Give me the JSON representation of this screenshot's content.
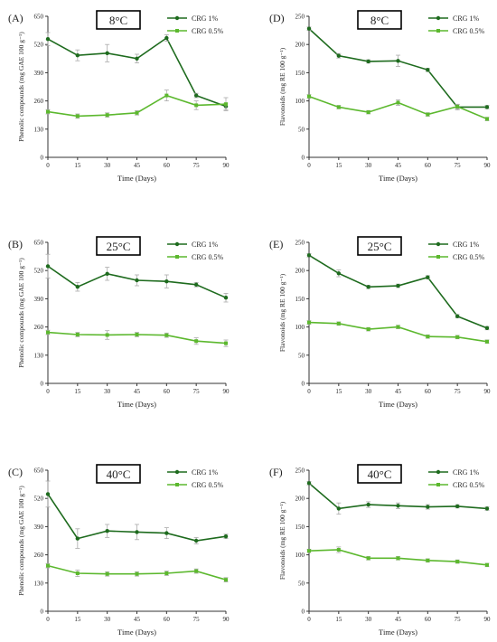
{
  "figure": {
    "colors": {
      "dark": "#1e6b1e",
      "light": "#5cb82e",
      "axis": "#333333"
    },
    "x_ticks": [
      0,
      15,
      30,
      45,
      60,
      75,
      90
    ]
  },
  "chart_data": [
    {
      "panel_label": "(A)",
      "temp_label": "8°C",
      "type": "line",
      "xlabel": "Time (Days)",
      "ylabel": "Phenolic compounds (mg GAE 100 g⁻¹)",
      "xlim": [
        0,
        90
      ],
      "ylim": [
        0,
        650
      ],
      "yticks": [
        0,
        130,
        260,
        390,
        520,
        650
      ],
      "x": [
        0,
        15,
        30,
        45,
        60,
        75,
        90
      ],
      "series": [
        {
          "name": "CRG 1%",
          "values": [
            545,
            470,
            480,
            455,
            550,
            285,
            235
          ],
          "errors": [
            30,
            25,
            40,
            20,
            15,
            10,
            15
          ]
        },
        {
          "name": "CRG 0.5%",
          "values": [
            210,
            190,
            195,
            205,
            285,
            240,
            245
          ],
          "errors": [
            10,
            10,
            10,
            10,
            25,
            20,
            30
          ]
        }
      ]
    },
    {
      "panel_label": "(D)",
      "temp_label": "8°C",
      "type": "line",
      "xlabel": "Time (Days)",
      "ylabel": "Flavonoids (mg RE 100 g⁻¹)",
      "xlim": [
        0,
        90
      ],
      "ylim": [
        0,
        250
      ],
      "yticks": [
        0,
        50,
        100,
        150,
        200,
        250
      ],
      "x": [
        0,
        15,
        30,
        45,
        60,
        75,
        90
      ],
      "series": [
        {
          "name": "CRG 1%",
          "values": [
            228,
            180,
            170,
            171,
            155,
            89,
            89
          ],
          "errors": [
            3,
            4,
            3,
            10,
            3,
            5,
            3
          ]
        },
        {
          "name": "CRG 0.5%",
          "values": [
            108,
            89,
            80,
            97,
            76,
            90,
            68
          ],
          "errors": [
            3,
            3,
            3,
            5,
            3,
            4,
            3
          ]
        }
      ]
    },
    {
      "panel_label": "(B)",
      "temp_label": "25°C",
      "type": "line",
      "xlabel": "Time (Days)",
      "ylabel": "Phenolic compounds (mg GAE 100 g⁻¹)",
      "xlim": [
        0,
        90
      ],
      "ylim": [
        0,
        650
      ],
      "yticks": [
        0,
        130,
        260,
        390,
        520,
        650
      ],
      "x": [
        0,
        15,
        30,
        45,
        60,
        75,
        90
      ],
      "series": [
        {
          "name": "CRG 1%",
          "values": [
            540,
            445,
            505,
            475,
            470,
            455,
            395
          ],
          "errors": [
            55,
            20,
            30,
            25,
            30,
            10,
            20
          ]
        },
        {
          "name": "CRG 0.5%",
          "values": [
            235,
            225,
            223,
            225,
            222,
            195,
            185
          ],
          "errors": [
            10,
            10,
            20,
            10,
            10,
            15,
            15
          ]
        }
      ]
    },
    {
      "panel_label": "(E)",
      "temp_label": "25°C",
      "type": "line",
      "xlabel": "Time (Days)",
      "ylabel": "Flavonoids (mg RE 100 g⁻¹)",
      "xlim": [
        0,
        90
      ],
      "ylim": [
        0,
        250
      ],
      "yticks": [
        0,
        50,
        100,
        150,
        200,
        250
      ],
      "x": [
        0,
        15,
        30,
        45,
        60,
        75,
        90
      ],
      "series": [
        {
          "name": "CRG 1%",
          "values": [
            227,
            195,
            171,
            173,
            188,
            119,
            98
          ],
          "errors": [
            3,
            6,
            3,
            3,
            3,
            3,
            3
          ]
        },
        {
          "name": "CRG 0.5%",
          "values": [
            108,
            106,
            96,
            100,
            83,
            82,
            74
          ],
          "errors": [
            3,
            3,
            3,
            3,
            3,
            3,
            3
          ]
        }
      ]
    },
    {
      "panel_label": "(C)",
      "temp_label": "40°C",
      "type": "line",
      "xlabel": "Time (Days)",
      "ylabel": "Phenolic compounds (mg GAE 100 g⁻¹)",
      "xlim": [
        0,
        90
      ],
      "ylim": [
        0,
        650
      ],
      "yticks": [
        0,
        130,
        260,
        390,
        520,
        650
      ],
      "x": [
        0,
        15,
        30,
        45,
        60,
        75,
        90
      ],
      "series": [
        {
          "name": "CRG 1%",
          "values": [
            540,
            335,
            370,
            365,
            360,
            325,
            345
          ],
          "errors": [
            60,
            45,
            30,
            35,
            25,
            15,
            10
          ]
        },
        {
          "name": "CRG 0.5%",
          "values": [
            210,
            175,
            172,
            172,
            175,
            185,
            145
          ],
          "errors": [
            10,
            15,
            10,
            10,
            10,
            10,
            10
          ]
        }
      ]
    },
    {
      "panel_label": "(F)",
      "temp_label": "40°C",
      "type": "line",
      "xlabel": "Time (Days)",
      "ylabel": "Flavonoids (mg RE 100 g⁻¹)",
      "xlim": [
        0,
        90
      ],
      "ylim": [
        0,
        250
      ],
      "yticks": [
        0,
        50,
        100,
        150,
        200,
        250
      ],
      "x": [
        0,
        15,
        30,
        45,
        60,
        75,
        90
      ],
      "series": [
        {
          "name": "CRG 1%",
          "values": [
            227,
            182,
            189,
            187,
            185,
            186,
            182
          ],
          "errors": [
            3,
            10,
            5,
            5,
            4,
            3,
            3
          ]
        },
        {
          "name": "CRG 0.5%",
          "values": [
            107,
            109,
            94,
            94,
            90,
            88,
            82
          ],
          "errors": [
            3,
            5,
            3,
            3,
            3,
            3,
            3
          ]
        }
      ]
    }
  ]
}
